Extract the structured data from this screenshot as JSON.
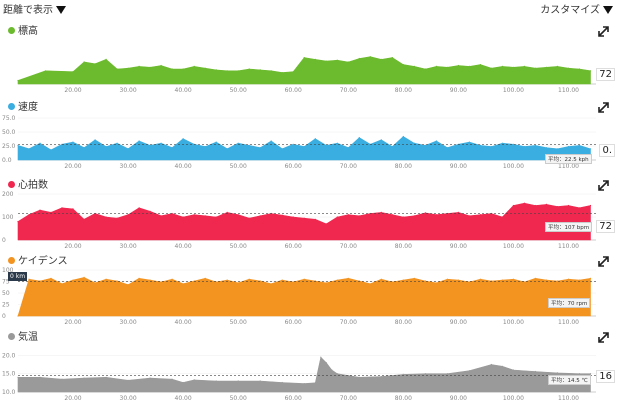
{
  "topbar": {
    "view_mode": "距離で表示",
    "customize": "カスタマイズ"
  },
  "x_ticks": [
    "20.00",
    "30.00",
    "40.00",
    "50.00",
    "60.00",
    "70.00",
    "80.00",
    "90.00",
    "100.00",
    "110.00"
  ],
  "colors": {
    "elevation": "#6cbb2e",
    "speed": "#3aaee0",
    "heart": "#f0284f",
    "cadence": "#f39320",
    "temp": "#9a9a9a"
  },
  "chart_data": [
    {
      "id": "elevation",
      "type": "area",
      "title": "標高",
      "yticks": [],
      "ylim": [
        0,
        100
      ],
      "readout": "72",
      "x": [
        10,
        15,
        20,
        22,
        24,
        26,
        28,
        30,
        32,
        34,
        36,
        38,
        40,
        42,
        44,
        46,
        48,
        50,
        52,
        54,
        56,
        58,
        60,
        62,
        64,
        66,
        68,
        70,
        72,
        74,
        76,
        78,
        80,
        82,
        84,
        86,
        88,
        90,
        92,
        94,
        96,
        98,
        100,
        102,
        104,
        106,
        108,
        110,
        112,
        114
      ],
      "y": [
        8,
        30,
        28,
        50,
        46,
        56,
        34,
        36,
        40,
        38,
        42,
        34,
        34,
        40,
        36,
        32,
        30,
        30,
        34,
        32,
        30,
        26,
        28,
        60,
        56,
        52,
        54,
        50,
        58,
        62,
        56,
        60,
        44,
        40,
        34,
        40,
        38,
        42,
        40,
        44,
        36,
        40,
        38,
        40,
        36,
        38,
        40,
        36,
        34,
        30
      ]
    },
    {
      "id": "speed",
      "type": "area",
      "title": "速度",
      "yticks": [
        "75.0",
        "50.0",
        "25.0",
        "0.0"
      ],
      "ylim": [
        0,
        75
      ],
      "readout": "0.",
      "average_label": "平均：22.5 kph",
      "x": [
        10,
        12,
        14,
        16,
        18,
        20,
        22,
        24,
        26,
        28,
        30,
        32,
        34,
        36,
        38,
        40,
        42,
        44,
        46,
        48,
        50,
        52,
        54,
        56,
        58,
        60,
        62,
        64,
        66,
        68,
        70,
        72,
        74,
        76,
        78,
        80,
        82,
        84,
        86,
        88,
        90,
        92,
        94,
        96,
        98,
        100,
        102,
        104,
        106,
        108,
        110,
        112,
        114
      ],
      "y": [
        26,
        20,
        30,
        18,
        28,
        32,
        22,
        36,
        24,
        30,
        20,
        34,
        26,
        30,
        22,
        38,
        28,
        24,
        32,
        20,
        30,
        26,
        22,
        34,
        20,
        28,
        24,
        38,
        26,
        30,
        22,
        40,
        28,
        36,
        24,
        42,
        30,
        26,
        34,
        22,
        28,
        32,
        26,
        24,
        30,
        28,
        24,
        26,
        22,
        20,
        24,
        26,
        20
      ]
    },
    {
      "id": "heart",
      "type": "area",
      "title": "心拍数",
      "yticks": [
        "200",
        "100",
        "0"
      ],
      "ylim": [
        0,
        200
      ],
      "readout": "72",
      "average_label": "平均：107 bpm",
      "x": [
        10,
        12,
        14,
        16,
        18,
        20,
        22,
        24,
        26,
        28,
        30,
        32,
        34,
        36,
        38,
        40,
        42,
        44,
        46,
        48,
        50,
        52,
        54,
        56,
        58,
        60,
        62,
        64,
        66,
        68,
        70,
        72,
        74,
        76,
        78,
        80,
        82,
        84,
        86,
        88,
        90,
        92,
        94,
        96,
        98,
        100,
        102,
        104,
        106,
        108,
        110,
        112,
        114
      ],
      "y": [
        80,
        110,
        130,
        120,
        140,
        135,
        90,
        115,
        100,
        95,
        110,
        140,
        125,
        105,
        115,
        100,
        110,
        105,
        100,
        120,
        110,
        95,
        105,
        115,
        108,
        100,
        95,
        90,
        70,
        100,
        110,
        105,
        115,
        120,
        110,
        100,
        105,
        118,
        110,
        115,
        120,
        105,
        110,
        115,
        100,
        150,
        160,
        150,
        155,
        145,
        150,
        140,
        150
      ]
    },
    {
      "id": "cadence",
      "type": "area",
      "title": "ケイデンス",
      "yticks": [
        "100",
        "75",
        "50",
        "25",
        "0"
      ],
      "ylim": [
        0,
        100
      ],
      "average_label": "平均：70 rpm",
      "badge": "0 km",
      "x": [
        10,
        12,
        14,
        16,
        18,
        20,
        22,
        24,
        26,
        28,
        30,
        32,
        34,
        36,
        38,
        40,
        42,
        44,
        46,
        48,
        50,
        52,
        54,
        56,
        58,
        60,
        62,
        64,
        66,
        68,
        70,
        72,
        74,
        76,
        78,
        80,
        82,
        84,
        86,
        88,
        90,
        92,
        94,
        96,
        98,
        100,
        102,
        104,
        106,
        108,
        110,
        112,
        114
      ],
      "y": [
        0,
        80,
        76,
        82,
        70,
        78,
        84,
        72,
        80,
        76,
        68,
        82,
        78,
        74,
        80,
        70,
        76,
        82,
        74,
        78,
        72,
        80,
        76,
        70,
        78,
        74,
        80,
        76,
        72,
        78,
        82,
        76,
        70,
        80,
        74,
        78,
        82,
        76,
        72,
        80,
        78,
        74,
        80,
        76,
        78,
        80,
        74,
        82,
        78,
        76,
        80,
        78,
        82
      ]
    },
    {
      "id": "temp",
      "type": "area",
      "title": "気温",
      "yticks": [
        "20.0",
        "15.0",
        "10.0"
      ],
      "ylim": [
        10,
        22
      ],
      "readout": "16",
      "average_label": "平均：14.5 ℃",
      "x": [
        10,
        14,
        18,
        22,
        26,
        30,
        34,
        38,
        40,
        42,
        46,
        50,
        54,
        58,
        62,
        64,
        65,
        66,
        67,
        68,
        70,
        72,
        76,
        80,
        84,
        88,
        92,
        96,
        98,
        100,
        104,
        108,
        112,
        114
      ],
      "y": [
        14,
        14,
        13.5,
        13.8,
        14,
        13.2,
        13.8,
        13.5,
        12.6,
        13.3,
        13,
        13,
        13,
        12.6,
        12.3,
        12.5,
        19.5,
        18,
        16,
        15,
        14.5,
        14,
        14.2,
        14.8,
        15,
        15,
        15.8,
        17.5,
        17,
        16,
        15.6,
        15.2,
        15,
        15
      ]
    }
  ]
}
